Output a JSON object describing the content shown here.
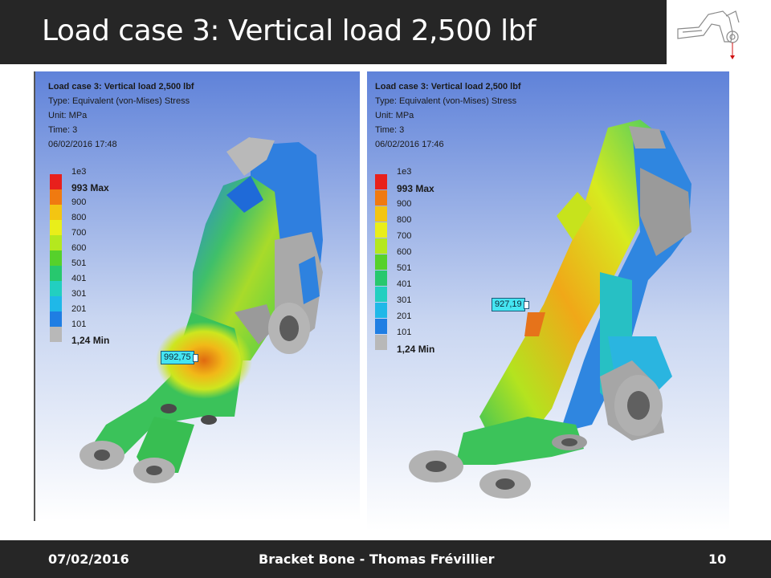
{
  "slide": {
    "title": "Load case 3: Vertical load 2,500 lbf"
  },
  "footer": {
    "date": "07/02/2016",
    "center": "Bracket Bone - Thomas Frévillier",
    "page": "10"
  },
  "panels": [
    {
      "heading": "Load case 3: Vertical load 2,500 lbf",
      "type_line": "Type: Equivalent (von-Mises) Stress",
      "unit_line": "Unit: MPa",
      "time_line": "Time: 3",
      "timestamp": "06/02/2016 17:48",
      "probe_value": "992,75"
    },
    {
      "heading": "Load case 3: Vertical load 2,500 lbf",
      "type_line": "Type: Equivalent (von-Mises) Stress",
      "unit_line": "Unit: MPa",
      "time_line": "Time: 3",
      "timestamp": "06/02/2016 17:46",
      "probe_value": "927,19"
    }
  ],
  "legend": {
    "labels": [
      "1e3",
      "993 Max",
      "900",
      "800",
      "700",
      "600",
      "501",
      "401",
      "301",
      "201",
      "101",
      "1,24 Min"
    ],
    "colors": [
      "#e8201c",
      "#f07a10",
      "#f3c512",
      "#e9ee1a",
      "#b4e81e",
      "#56d12b",
      "#27c86e",
      "#22cfc0",
      "#1fb8e8",
      "#1f7ee3",
      "#2142d8",
      "#b8b8b8"
    ]
  }
}
